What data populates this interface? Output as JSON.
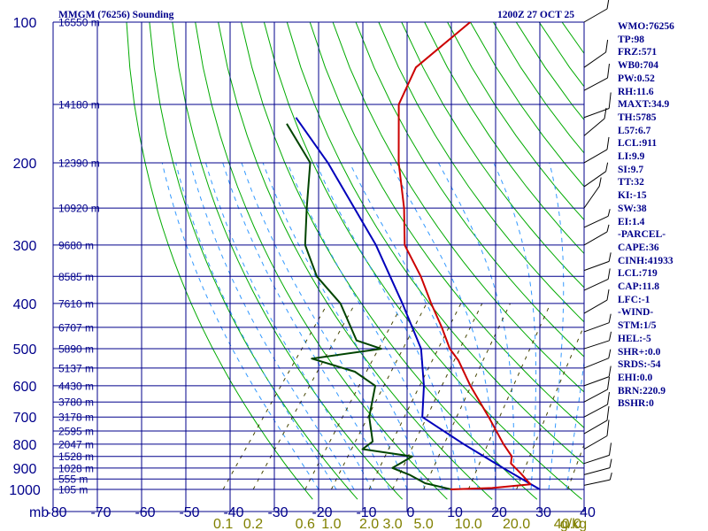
{
  "header": {
    "title": "MMGM (76256) Sounding",
    "datetime": "1200Z 27 OCT 25"
  },
  "colors": {
    "grid": "#00008b",
    "label": "#00008b",
    "mixing_label": "#808000",
    "dry_adiabat": "#00aa00",
    "moist_adiabat": "#3399ff",
    "mixing_line": "#444400",
    "temperature": "#cc0000",
    "dewpoint": "#004400",
    "parcel": "#0000bb"
  },
  "indices": [
    "WMO:76256",
    "TP:98",
    "FRZ:571",
    "WB0:704",
    "PW:0.52",
    "RH:11.6",
    "MAXT:34.9",
    "TH:5785",
    "L57:6.7",
    "LCL:911",
    "LI:9.9",
    "SI:9.7",
    "TT:32",
    "KI:-15",
    "SW:38",
    "EI:1.4",
    "-PARCEL-",
    "CAPE:36",
    "CINH:41933",
    "LCL:719",
    "CAP:11.8",
    "LFC:-1",
    "-WIND-",
    "STM:1/5",
    "HEL:-5",
    "SHR+:0.0",
    "SRDS:-54",
    "EHI:0.0",
    "BRN:220.9",
    "BSHR:0"
  ],
  "chart_data": {
    "type": "skew-t",
    "title": "MMGM (76256) Sounding",
    "datetime": "1200Z 27 OCT 25",
    "xlabel": "",
    "ylabel": "mb",
    "pressure_axis_label": "mb",
    "mixing_ratio_unit": "g/kg",
    "temperature_ticks": [
      "-80",
      "-70",
      "-60",
      "-50",
      "-40",
      "-30",
      "-20",
      "-10",
      "0",
      "10",
      "20",
      "30",
      "40"
    ],
    "pressure_ticks": [
      "100",
      "200",
      "300",
      "400",
      "500",
      "600",
      "700",
      "800",
      "900",
      "1000"
    ],
    "height_levels": [
      {
        "p": 100,
        "label": "16550 m"
      },
      {
        "p": 150,
        "label": "14180 m"
      },
      {
        "p": 200,
        "label": "12390 m"
      },
      {
        "p": 250,
        "label": "10920 m"
      },
      {
        "p": 300,
        "label": "9680 m"
      },
      {
        "p": 350,
        "label": "8585 m"
      },
      {
        "p": 400,
        "label": "7610 m"
      },
      {
        "p": 450,
        "label": "6707 m"
      },
      {
        "p": 500,
        "label": "5890 m"
      },
      {
        "p": 550,
        "label": "5137 m"
      },
      {
        "p": 600,
        "label": "4430 m"
      },
      {
        "p": 650,
        "label": "3780 m"
      },
      {
        "p": 700,
        "label": "3178 m"
      },
      {
        "p": 750,
        "label": "2595 m"
      },
      {
        "p": 800,
        "label": "2047 m"
      },
      {
        "p": 850,
        "label": "1528 m"
      },
      {
        "p": 900,
        "label": "1028 m"
      },
      {
        "p": 950,
        "label": "555 m"
      },
      {
        "p": 1000,
        "label": "105 m"
      }
    ],
    "mixing_ratio_labels": [
      "0.1",
      "0.2",
      "0.6",
      "1.0",
      "2.0",
      "3.0",
      "5.0",
      "10.0",
      "20.0",
      "40.0",
      "g/kg"
    ],
    "mixing_ratio_values": [
      0.1,
      0.2,
      0.6,
      1.0,
      2.0,
      3.0,
      5.0,
      10.0,
      20.0,
      40.0
    ],
    "temperature_profile": [
      {
        "p": 1000,
        "t": 9.8
      },
      {
        "p": 993,
        "t": 19.0
      },
      {
        "p": 975,
        "t": 27.0
      },
      {
        "p": 925,
        "t": 23.0
      },
      {
        "p": 880,
        "t": 19.0
      },
      {
        "p": 850,
        "t": 18.0
      },
      {
        "p": 800,
        "t": 14.0
      },
      {
        "p": 700,
        "t": 6.0
      },
      {
        "p": 600,
        "t": -3.5
      },
      {
        "p": 530,
        "t": -10.5
      },
      {
        "p": 500,
        "t": -14.5
      },
      {
        "p": 450,
        "t": -20.0
      },
      {
        "p": 400,
        "t": -26.5
      },
      {
        "p": 350,
        "t": -33.5
      },
      {
        "p": 300,
        "t": -42.5
      },
      {
        "p": 250,
        "t": -49.0
      },
      {
        "p": 200,
        "t": -58.0
      },
      {
        "p": 150,
        "t": -68.0
      },
      {
        "p": 125,
        "t": -70.5
      },
      {
        "p": 100,
        "t": -66.0
      }
    ],
    "dewpoint_profile": [
      {
        "p": 1000,
        "t": 10.0
      },
      {
        "p": 970,
        "t": 3.0
      },
      {
        "p": 930,
        "t": -2.0
      },
      {
        "p": 900,
        "t": -7.0
      },
      {
        "p": 850,
        "t": -4.5
      },
      {
        "p": 820,
        "t": -17.0
      },
      {
        "p": 790,
        "t": -16.0
      },
      {
        "p": 700,
        "t": -21.0
      },
      {
        "p": 600,
        "t": -25.0
      },
      {
        "p": 560,
        "t": -32.0
      },
      {
        "p": 525,
        "t": -44.0
      },
      {
        "p": 500,
        "t": -30.0
      },
      {
        "p": 480,
        "t": -37.0
      },
      {
        "p": 400,
        "t": -47.0
      },
      {
        "p": 350,
        "t": -57.0
      },
      {
        "p": 300,
        "t": -65.0
      },
      {
        "p": 250,
        "t": -71.0
      },
      {
        "p": 200,
        "t": -78.0
      },
      {
        "p": 165,
        "t": -90.0
      }
    ],
    "parcel_profile": [
      {
        "p": 1000,
        "t": 30.0
      },
      {
        "p": 900,
        "t": 18.0
      },
      {
        "p": 800,
        "t": 5.0
      },
      {
        "p": 700,
        "t": -9.0
      },
      {
        "p": 600,
        "t": -14.0
      },
      {
        "p": 500,
        "t": -21.0
      },
      {
        "p": 400,
        "t": -33.0
      },
      {
        "p": 300,
        "t": -49.0
      },
      {
        "p": 200,
        "t": -74.0
      },
      {
        "p": 160,
        "t": -89.0
      }
    ]
  }
}
